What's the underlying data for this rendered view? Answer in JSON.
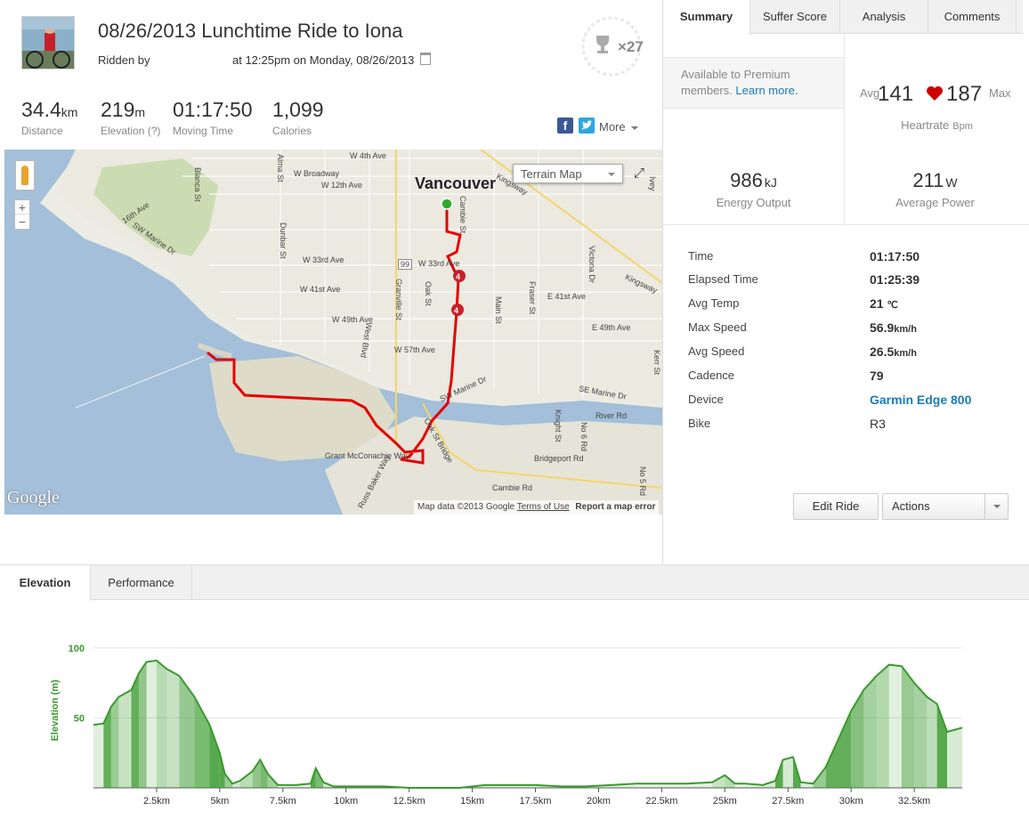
{
  "activity": {
    "title": "08/26/2013 Lunchtime Ride to Iona",
    "ridden_by_label": "Ridden by",
    "date_text": "at 12:25pm on Monday, 08/26/2013",
    "achievement_count": "×27"
  },
  "stats": [
    {
      "value": "34.4",
      "unit": "km",
      "label": "Distance"
    },
    {
      "value": "219",
      "unit": "m",
      "label": "Elevation (?)"
    },
    {
      "value": "01:17:50",
      "unit": "",
      "label": "Moving Time"
    },
    {
      "value": "1,099",
      "unit": "",
      "label": "Calories"
    }
  ],
  "share": {
    "facebook": "f",
    "more_label": "More"
  },
  "map": {
    "type_label": "Terrain Map",
    "city": "Vancouver",
    "logo": "Google",
    "attribution": "Map data ©2013 Google",
    "terms": "Terms of Use",
    "report": "Report a map error",
    "labels": {
      "w4th": "W 4th Ave",
      "wbroadway": "W Broadway",
      "w12th": "W 12th Ave",
      "w16th": "16th Ave",
      "w33rd": "W 33rd Ave",
      "w33rd2": "W 33rd Ave",
      "w41st": "W 41st Ave",
      "e41st": "E 41st Ave",
      "w49th": "W 49th Ave",
      "e49th": "E 49th Ave",
      "w57th": "W 57th Ave",
      "swmarine": "SW Marine Dr",
      "swmarine2": "SW Marine Dr",
      "semarine": "SE Marine Dr",
      "riverrd": "River Rd",
      "grant": "Grant McConachie Way",
      "bridgeport": "Bridgeport Rd",
      "cambierd": "Cambie Rd",
      "oakst": "Oak St Bridge",
      "kingsway": "Kingsway",
      "kingsway2": "Kingsway",
      "alma": "Alma St",
      "blanca": "Blanca St",
      "dunbar": "Dunbar St",
      "oak": "Oak St",
      "granville": "Granville St",
      "westblvd": "West Blvd",
      "main": "Main St",
      "fraser": "Fraser St",
      "victoria": "Victoria Dr",
      "knight": "Knight St",
      "no6": "No 6 Rd",
      "no5": "No 5 Rd",
      "kerr": "Kerr St",
      "cambiest": "Cambie St",
      "ivey": "Ivey",
      "russ": "Russ Baker Way",
      "hwy99": "99"
    },
    "markers": [
      "4",
      "4"
    ]
  },
  "tabs": [
    "Summary",
    "Suffer Score",
    "Analysis",
    "Comments"
  ],
  "premium": {
    "text": "Available to Premium members.",
    "link": "Learn more."
  },
  "heartrate": {
    "avg_label": "Avg",
    "avg": "141",
    "max": "187",
    "max_label": "Max",
    "label": "Heartrate",
    "unit": "Bpm"
  },
  "energy": {
    "value": "986",
    "unit": "kJ",
    "label": "Energy Output"
  },
  "power": {
    "value": "211",
    "unit": "W",
    "label": "Average Power"
  },
  "details": [
    {
      "key": "Time",
      "value": "01:17:50",
      "unit": ""
    },
    {
      "key": "Elapsed Time",
      "value": "01:25:39",
      "unit": ""
    },
    {
      "key": "Avg Temp",
      "value": "21",
      "unit": "℃"
    },
    {
      "key": "Max Speed",
      "value": "56.9",
      "unit": "km/h"
    },
    {
      "key": "Avg Speed",
      "value": "26.5",
      "unit": "km/h"
    },
    {
      "key": "Cadence",
      "value": "79",
      "unit": ""
    },
    {
      "key": "Device",
      "value": "Garmin Edge 800",
      "unit": ""
    },
    {
      "key": "Bike",
      "value": "R3",
      "unit": ""
    }
  ],
  "buttons": {
    "edit": "Edit Ride",
    "actions": "Actions"
  },
  "bottom_tabs": [
    "Elevation",
    "Performance"
  ],
  "colors": {
    "route": "#e60000",
    "elevation": "#3a9a2e",
    "link": "#1a7ab8",
    "heart": "#cc0000"
  },
  "chart_data": {
    "type": "area",
    "ylabel": "Elevation (m)",
    "yticks": [
      100,
      50
    ],
    "ylim": [
      0,
      105
    ],
    "xlim": [
      0,
      34.4
    ],
    "xticks": [
      "2.5km",
      "5km",
      "7.5km",
      "10km",
      "12.5km",
      "15km",
      "17.5km",
      "20km",
      "22.5km",
      "25km",
      "27.5km",
      "30km",
      "32.5km"
    ],
    "xtick_values": [
      2.5,
      5,
      7.5,
      10,
      12.5,
      15,
      17.5,
      20,
      22.5,
      25,
      27.5,
      30,
      32.5
    ],
    "x": [
      0,
      0.4,
      0.7,
      1.0,
      1.5,
      1.8,
      2.1,
      2.5,
      2.9,
      3.4,
      4.0,
      4.6,
      5.0,
      5.2,
      5.5,
      5.8,
      6.3,
      6.6,
      6.9,
      7.3,
      8.0,
      8.6,
      8.8,
      9.1,
      9.5,
      10.5,
      11.5,
      12.5,
      13.5,
      14.5,
      15.5,
      16.5,
      17.5,
      18.5,
      19.5,
      20.5,
      21.5,
      22.5,
      23.5,
      24.5,
      25.0,
      25.4,
      25.8,
      26.5,
      27.0,
      27.3,
      27.7,
      28.0,
      28.5,
      29.0,
      29.5,
      30.0,
      30.5,
      31.0,
      31.5,
      32.0,
      32.5,
      33.0,
      33.4,
      33.8,
      34.2,
      34.4
    ],
    "values": [
      45,
      46,
      58,
      65,
      70,
      82,
      90,
      91,
      85,
      80,
      65,
      45,
      25,
      10,
      3,
      5,
      12,
      20,
      10,
      2,
      2,
      3,
      14,
      4,
      1,
      1,
      1,
      0,
      0,
      0,
      2,
      2,
      2,
      1,
      1,
      2,
      3,
      3,
      3,
      4,
      9,
      3,
      3,
      2,
      5,
      20,
      22,
      4,
      3,
      15,
      35,
      55,
      70,
      80,
      88,
      87,
      75,
      65,
      60,
      40,
      42,
      43
    ]
  }
}
